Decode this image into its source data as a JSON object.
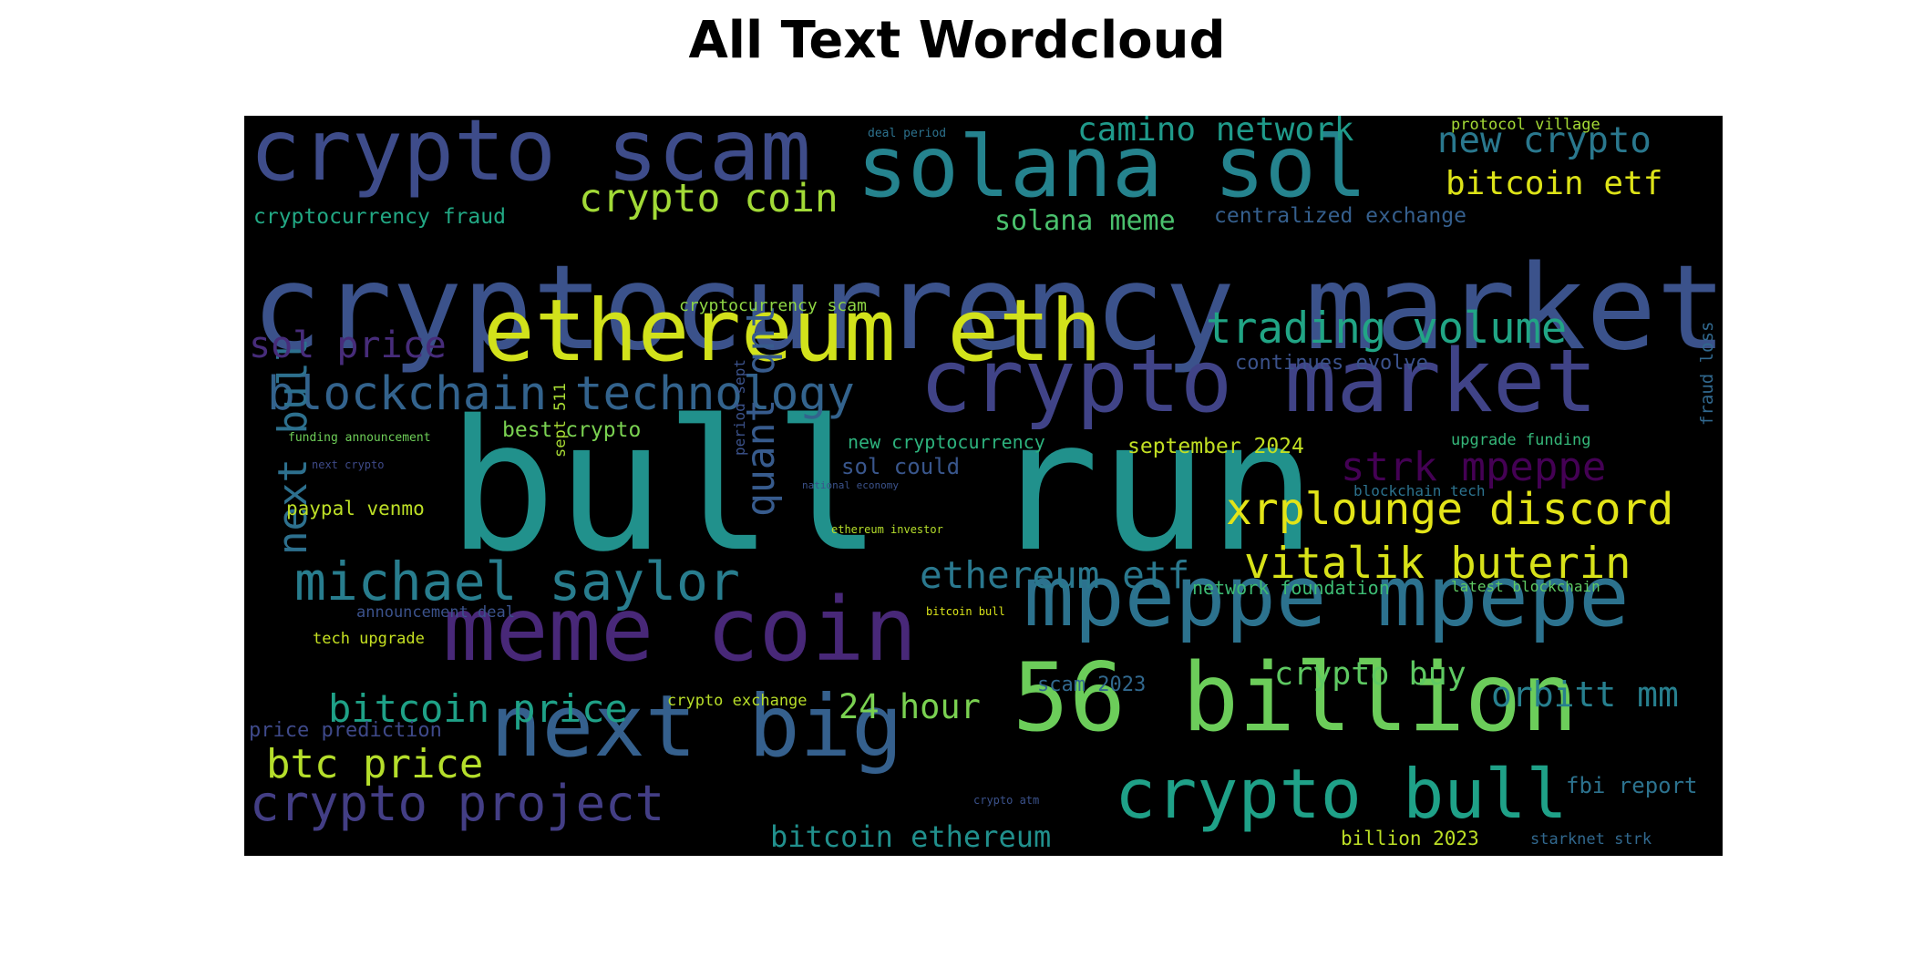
{
  "chart_data": {
    "type": "wordcloud",
    "title": "All Text Wordcloud",
    "background": "#000000",
    "colormap": "viridis",
    "words": [
      {
        "text": "bull run",
        "color": "#21918c"
      },
      {
        "text": "cryptocurrency market",
        "color": "#3b528b"
      },
      {
        "text": "ethereum eth",
        "color": "#d2e21b"
      },
      {
        "text": "crypto market",
        "color": "#404387"
      },
      {
        "text": "solana sol",
        "color": "#25838e"
      },
      {
        "text": "crypto scam",
        "color": "#3e4c8a"
      },
      {
        "text": "56 billion",
        "color": "#6ccd5a"
      },
      {
        "text": "meme coin",
        "color": "#482878"
      },
      {
        "text": "next big",
        "color": "#35608d"
      },
      {
        "text": "mpeppe mpepe",
        "color": "#2c728e"
      },
      {
        "text": "crypto bull",
        "color": "#1fa188"
      },
      {
        "text": "michael saylor",
        "color": "#287d8e"
      },
      {
        "text": "crypto project",
        "color": "#433e85"
      },
      {
        "text": "blockchain technology",
        "color": "#33638d"
      },
      {
        "text": "trading volume",
        "color": "#21a585"
      },
      {
        "text": "xrplounge discord",
        "color": "#e3e418"
      },
      {
        "text": "vitalik buterin",
        "color": "#d8e219"
      },
      {
        "text": "next bull",
        "color": "#2d708e"
      },
      {
        "text": "quant qnt",
        "color": "#375b8d"
      },
      {
        "text": "bitcoin price",
        "color": "#1fa187"
      },
      {
        "text": "btc price",
        "color": "#b5de2b"
      },
      {
        "text": "strk mpeppe",
        "color": "#440154"
      },
      {
        "text": "ethereum etf",
        "color": "#2a788e"
      },
      {
        "text": "crypto coin",
        "color": "#a2da37"
      },
      {
        "text": "camino network",
        "color": "#1f9a8a"
      },
      {
        "text": "new crypto",
        "color": "#2a788e"
      },
      {
        "text": "bitcoin etf",
        "color": "#dde318"
      },
      {
        "text": "sol price",
        "color": "#472c7a"
      },
      {
        "text": "orbitt mm",
        "color": "#277f8e"
      },
      {
        "text": "crypto buy",
        "color": "#5ec962"
      },
      {
        "text": "24 hour",
        "color": "#7ad151"
      },
      {
        "text": "bitcoin ethereum",
        "color": "#21908d"
      },
      {
        "text": "solana meme",
        "color": "#4ac16d"
      },
      {
        "text": "cryptocurrency fraud",
        "color": "#22a884"
      },
      {
        "text": "centralized exchange",
        "color": "#355f8d"
      },
      {
        "text": "september 2024",
        "color": "#c2df23"
      },
      {
        "text": "sol could",
        "color": "#39568c"
      },
      {
        "text": "best crypto",
        "color": "#7ad151"
      },
      {
        "text": "new cryptocurrency",
        "color": "#2db27d"
      },
      {
        "text": "continues evolve",
        "color": "#3b528b"
      },
      {
        "text": "fbi report",
        "color": "#2c728e"
      },
      {
        "text": "scam 2023",
        "color": "#31688e"
      },
      {
        "text": "paypal venmo",
        "color": "#bddf26"
      },
      {
        "text": "cryptocurrency scam",
        "color": "#8fd744"
      },
      {
        "text": "network foundation",
        "color": "#3dbc74"
      },
      {
        "text": "price prediction",
        "color": "#3e4989"
      },
      {
        "text": "billion 2023",
        "color": "#bddf26"
      },
      {
        "text": "starknet strk",
        "color": "#31688e"
      },
      {
        "text": "protocol village",
        "color": "#a5db36"
      },
      {
        "text": "deal period",
        "color": "#2c728e"
      },
      {
        "text": "crypto exchange",
        "color": "#b8de29"
      },
      {
        "text": "tech upgrade",
        "color": "#c5e021"
      },
      {
        "text": "announcement deal",
        "color": "#3b528b"
      },
      {
        "text": "upgrade funding",
        "color": "#35b779"
      },
      {
        "text": "blockchain tech",
        "color": "#2c728e"
      },
      {
        "text": "latest blockchain",
        "color": "#5ec962"
      },
      {
        "text": "fraud loss",
        "color": "#31688e"
      },
      {
        "text": "funding announcement",
        "color": "#6ece58"
      },
      {
        "text": "next crypto",
        "color": "#3e4a89"
      },
      {
        "text": "sept 511",
        "color": "#a8db34"
      },
      {
        "text": "period sept",
        "color": "#3b528b"
      },
      {
        "text": "national economy",
        "color": "#3b528b"
      },
      {
        "text": "ethereum investor",
        "color": "#b5de2b"
      },
      {
        "text": "bitcoin bull",
        "color": "#d8e219"
      },
      {
        "text": "crypto atm",
        "color": "#3b528b"
      }
    ]
  }
}
